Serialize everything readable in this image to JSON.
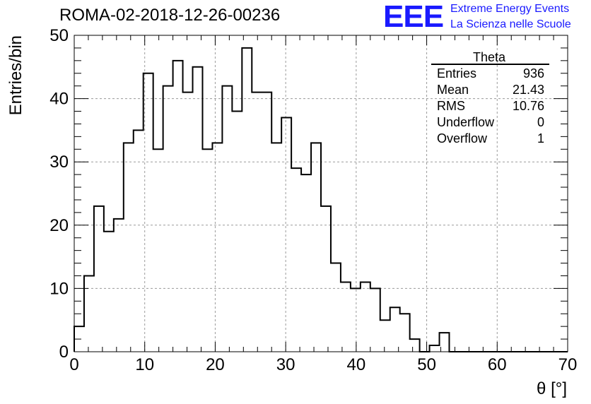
{
  "header": {
    "title": "ROMA-02-2018-12-26-00236",
    "logo_text": "EEE",
    "logo_line1": "Extreme Energy Events",
    "logo_line2": "La Scienza nelle Scuole",
    "logo_color": "#1a1aff"
  },
  "stats": {
    "name": "Theta",
    "rows": [
      {
        "label": "Entries",
        "value": "936"
      },
      {
        "label": "Mean",
        "value": "21.43"
      },
      {
        "label": "RMS",
        "value": "10.76"
      },
      {
        "label": "Underflow",
        "value": "0"
      },
      {
        "label": "Overflow",
        "value": "1"
      }
    ]
  },
  "chart_data": {
    "type": "histogram",
    "xlabel": "θ [°]",
    "ylabel": "Entries/bin",
    "xlim": [
      0,
      70
    ],
    "ylim": [
      0,
      50
    ],
    "xticks": [
      0,
      10,
      20,
      30,
      40,
      50,
      60,
      70
    ],
    "yticks": [
      0,
      10,
      20,
      30,
      40,
      50
    ],
    "grid": true,
    "bin_edges_start": 0,
    "bin_width": 1.4,
    "values": [
      4,
      12,
      23,
      19,
      21,
      33,
      35,
      44,
      32,
      42,
      46,
      41,
      45,
      32,
      33,
      42,
      38,
      48,
      41,
      41,
      33,
      37,
      29,
      28,
      33,
      23,
      14,
      11,
      10,
      11,
      10,
      5,
      7,
      6,
      2,
      0,
      1,
      3,
      0,
      0,
      0,
      0,
      0,
      0,
      0,
      0,
      0,
      0,
      0,
      0
    ]
  }
}
